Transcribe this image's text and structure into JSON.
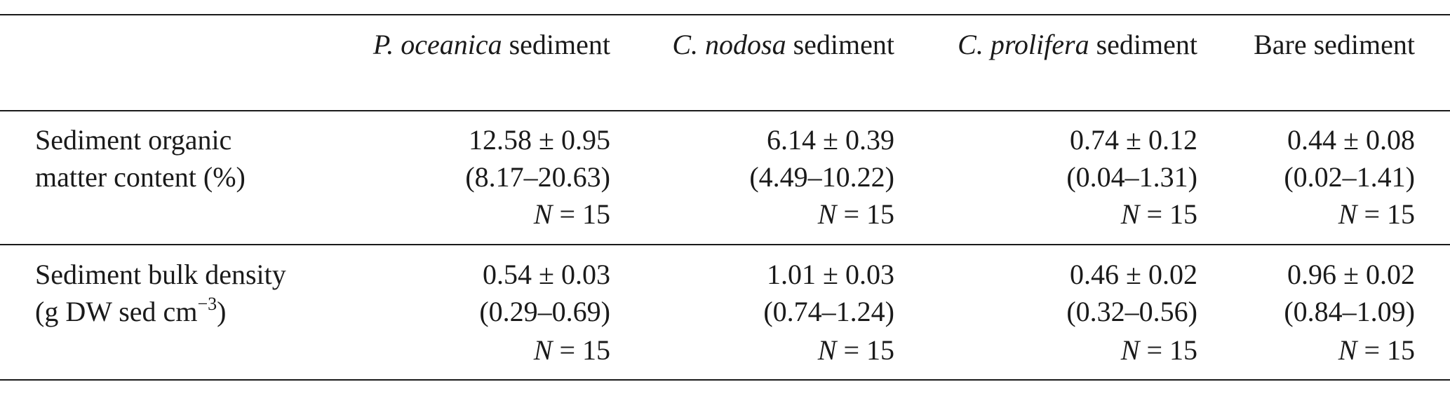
{
  "table": {
    "columns": [
      {
        "species": "P. oceanica",
        "suffix": "sediment"
      },
      {
        "species": "C. nodosa",
        "suffix": "sediment"
      },
      {
        "species": "C. prolifera",
        "suffix": "sediment"
      },
      {
        "species": "",
        "suffix": "Bare sediment"
      }
    ],
    "rows": [
      {
        "label_lines": [
          "Sediment organic",
          "matter content (%)"
        ],
        "cells": [
          {
            "mean": "12.58 ± 0.95",
            "range": "(8.17–20.63)",
            "n_symbol": "N",
            "n_value": "= 15"
          },
          {
            "mean": "6.14 ± 0.39",
            "range": "(4.49–10.22)",
            "n_symbol": "N",
            "n_value": "= 15"
          },
          {
            "mean": "0.74 ± 0.12",
            "range": "(0.04–1.31)",
            "n_symbol": "N",
            "n_value": "= 15"
          },
          {
            "mean": "0.44 ± 0.08",
            "range": "(0.02–1.41)",
            "n_symbol": "N",
            "n_value": "= 15"
          }
        ]
      },
      {
        "label_lines": [
          "Sediment bulk density"
        ],
        "unit": {
          "base": "(g DW sed cm",
          "exponent": "−3",
          "close": ")"
        },
        "cells": [
          {
            "mean": "0.54 ± 0.03",
            "range": "(0.29–0.69)",
            "n_symbol": "N",
            "n_value": "= 15"
          },
          {
            "mean": "1.01 ± 0.03",
            "range": "(0.74–1.24)",
            "n_symbol": "N",
            "n_value": "= 15"
          },
          {
            "mean": "0.46 ± 0.02",
            "range": "(0.32–0.56)",
            "n_symbol": "N",
            "n_value": "= 15"
          },
          {
            "mean": "0.96 ± 0.02",
            "range": "(0.84–1.09)",
            "n_symbol": "N",
            "n_value": "= 15"
          }
        ]
      }
    ]
  }
}
